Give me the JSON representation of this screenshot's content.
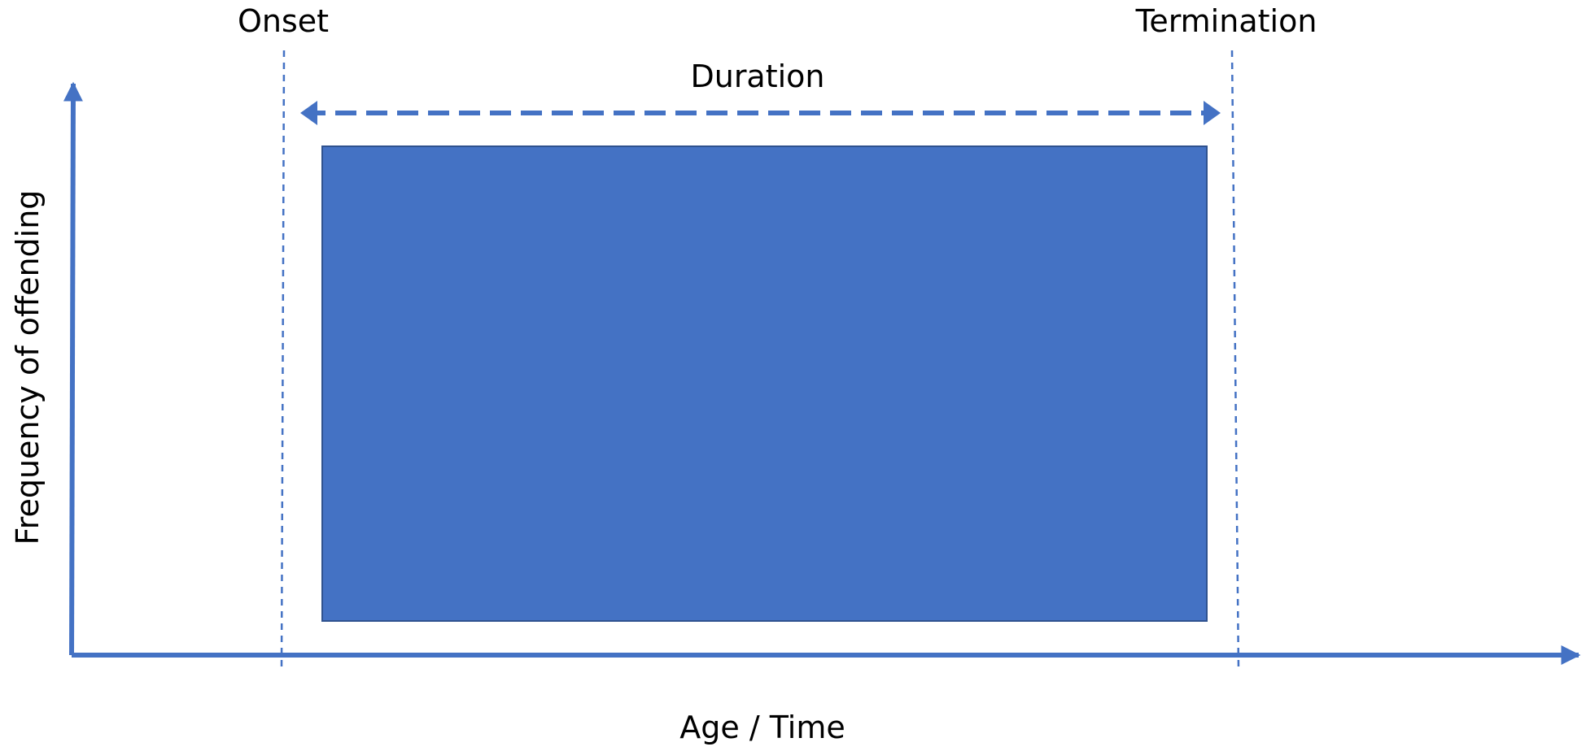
{
  "labels": {
    "onset": "Onset",
    "termination": "Termination",
    "duration": "Duration",
    "y_axis": "Frequency of offending",
    "x_axis": "Age / Time"
  },
  "colors": {
    "accent": "#4472C4",
    "block_fill": "#4472C4",
    "block_stroke": "#2F528F",
    "text": "#000000",
    "background": "#FFFFFF"
  }
}
